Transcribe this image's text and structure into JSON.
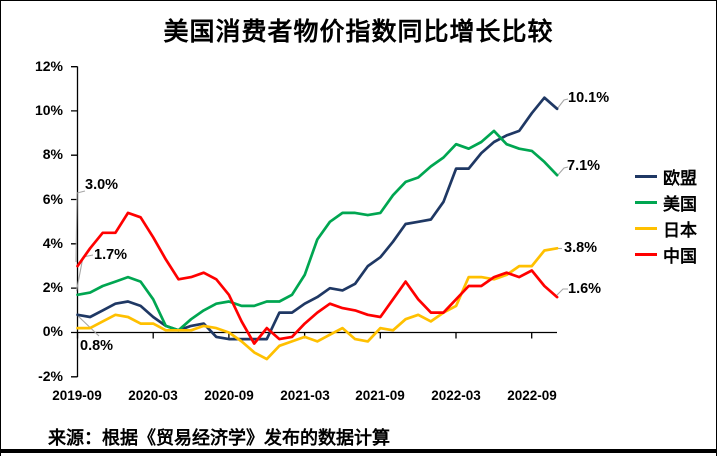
{
  "title": "美国消费者物价指数同比增长比较",
  "source": "来源：根据《贸易经济学》发布的数据计算",
  "chart_data": {
    "type": "line",
    "title": "美国消费者物价指数同比增长比较",
    "xlabel": "",
    "ylabel": "",
    "ylim": [
      -2,
      12
    ],
    "grid": false,
    "legend_position": "right",
    "y_tick_labels": [
      "12%",
      "10%",
      "8%",
      "6%",
      "4%",
      "2%",
      "0%",
      "-2%"
    ],
    "x_tick_labels": [
      "2019-09",
      "2020-03",
      "2020-09",
      "2021-03",
      "2021-09",
      "2022-03",
      "2022-09"
    ],
    "x": [
      "2019-09",
      "2019-10",
      "2019-11",
      "2019-12",
      "2020-01",
      "2020-02",
      "2020-03",
      "2020-04",
      "2020-05",
      "2020-06",
      "2020-07",
      "2020-08",
      "2020-09",
      "2020-10",
      "2020-11",
      "2020-12",
      "2021-01",
      "2021-02",
      "2021-03",
      "2021-04",
      "2021-05",
      "2021-06",
      "2021-07",
      "2021-08",
      "2021-09",
      "2021-10",
      "2021-11",
      "2021-12",
      "2022-01",
      "2022-02",
      "2022-03",
      "2022-04",
      "2022-05",
      "2022-06",
      "2022-07",
      "2022-08",
      "2022-09",
      "2022-10",
      "2022-11"
    ],
    "series": [
      {
        "name": "欧盟",
        "color": "#1f3864",
        "values": [
          0.8,
          0.7,
          1.0,
          1.3,
          1.4,
          1.2,
          0.7,
          0.3,
          0.1,
          0.3,
          0.4,
          -0.2,
          -0.3,
          -0.3,
          -0.3,
          -0.3,
          0.9,
          0.9,
          1.3,
          1.6,
          2.0,
          1.9,
          2.2,
          3.0,
          3.4,
          4.1,
          4.9,
          5.0,
          5.1,
          5.9,
          7.4,
          7.4,
          8.1,
          8.6,
          8.9,
          9.1,
          9.9,
          10.6,
          10.1
        ]
      },
      {
        "name": "美国",
        "color": "#00a651",
        "values": [
          1.7,
          1.8,
          2.1,
          2.3,
          2.5,
          2.3,
          1.5,
          0.3,
          0.1,
          0.6,
          1.0,
          1.3,
          1.4,
          1.2,
          1.2,
          1.4,
          1.4,
          1.7,
          2.6,
          4.2,
          5.0,
          5.4,
          5.4,
          5.3,
          5.4,
          6.2,
          6.8,
          7.0,
          7.5,
          7.9,
          8.5,
          8.3,
          8.6,
          9.1,
          8.5,
          8.3,
          8.2,
          7.7,
          7.1
        ]
      },
      {
        "name": "日本",
        "color": "#ffc000",
        "values": [
          0.2,
          0.2,
          0.5,
          0.8,
          0.7,
          0.4,
          0.4,
          0.1,
          0.1,
          0.1,
          0.3,
          0.2,
          0.0,
          -0.4,
          -0.9,
          -1.2,
          -0.6,
          -0.4,
          -0.2,
          -0.4,
          -0.1,
          0.2,
          -0.3,
          -0.4,
          0.2,
          0.1,
          0.6,
          0.8,
          0.5,
          0.9,
          1.2,
          2.5,
          2.5,
          2.4,
          2.6,
          3.0,
          3.0,
          3.7,
          3.8
        ]
      },
      {
        "name": "中国",
        "color": "#ff0000",
        "values": [
          3.0,
          3.8,
          4.5,
          4.5,
          5.4,
          5.2,
          4.3,
          3.3,
          2.4,
          2.5,
          2.7,
          2.4,
          1.7,
          0.5,
          -0.5,
          0.2,
          -0.3,
          -0.2,
          0.4,
          0.9,
          1.3,
          1.1,
          1.0,
          0.8,
          0.7,
          1.5,
          2.3,
          1.5,
          0.9,
          0.9,
          1.5,
          2.1,
          2.1,
          2.5,
          2.7,
          2.5,
          2.8,
          2.1,
          1.6
        ]
      }
    ],
    "annotations": [
      {
        "text": "3.0%",
        "series": "中国",
        "point": "first"
      },
      {
        "text": "1.7%",
        "series": "美国",
        "point": "first"
      },
      {
        "text": "0.8%",
        "series": "欧盟",
        "point": "first"
      },
      {
        "text": "10.1%",
        "series": "欧盟",
        "point": "last"
      },
      {
        "text": "7.1%",
        "series": "美国",
        "point": "last"
      },
      {
        "text": "3.8%",
        "series": "日本",
        "point": "last"
      },
      {
        "text": "1.6%",
        "series": "中国",
        "point": "last"
      }
    ]
  },
  "colors": {
    "axis": "#000000",
    "leader_line": "#a6a6a6",
    "background": "#ffffff"
  }
}
